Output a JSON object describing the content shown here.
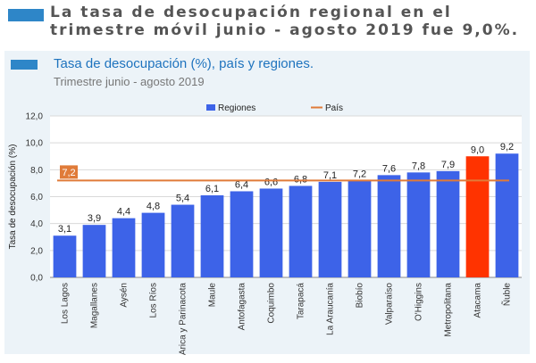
{
  "headline": "La tasa de desocupación regional en el trimestre móvil junio - agosto 2019 fue 9,0%.",
  "colors": {
    "accent": "#2e86c8",
    "bar": "#3d63e8",
    "highlight_bar": "#ff3300",
    "country_line": "#e07b39",
    "panel": "#ecf3f8"
  },
  "chart_data": {
    "type": "bar",
    "title": "Tasa de desocupación (%), país y regiones.",
    "subtitle": "Trimestre junio - agosto 2019",
    "ylabel": "Tasa de desocupación (%)",
    "xlabel": "",
    "ylim": [
      0,
      12
    ],
    "yticks": [
      "0,0",
      "2,0",
      "4,0",
      "6,0",
      "8,0",
      "10,0",
      "12,0"
    ],
    "grid": true,
    "legend_position": "top",
    "categories": [
      "Los Lagos",
      "Magallanes",
      "Aysén",
      "Los Ríos",
      "Arica y Parinacota",
      "Maule",
      "Antofagasta",
      "Coquimbo",
      "Tarapacá",
      "La Araucanía",
      "Biobío",
      "Valparaíso",
      "O'Higgins",
      "Metropolitana",
      "Atacama",
      "Ñuble"
    ],
    "series": [
      {
        "name": "Regiones",
        "values": [
          3.1,
          3.9,
          4.4,
          4.8,
          5.4,
          6.1,
          6.4,
          6.6,
          6.8,
          7.1,
          7.2,
          7.6,
          7.8,
          7.9,
          9.0,
          9.2
        ],
        "labels": [
          "3,1",
          "3,9",
          "4,4",
          "4,8",
          "5,4",
          "6,1",
          "6,4",
          "6,6",
          "6,8",
          "7,1",
          "7,2",
          "7,6",
          "7,8",
          "7,9",
          "9,0",
          "9,2"
        ]
      },
      {
        "name": "País",
        "value": 7.2,
        "label": "7,2"
      }
    ],
    "highlight_category": "Atacama"
  }
}
